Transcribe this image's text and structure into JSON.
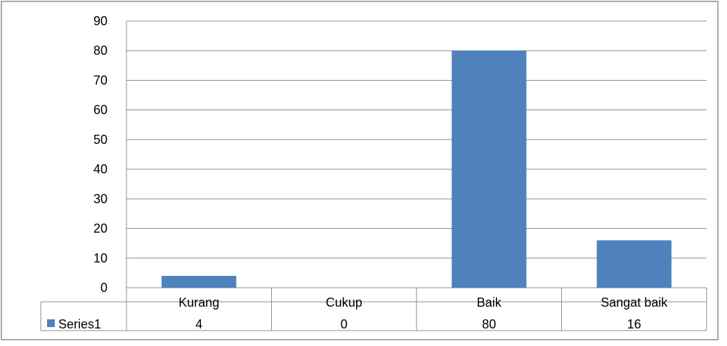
{
  "chart_data": {
    "type": "bar",
    "categories": [
      "Kurang",
      "Cukup",
      "Baik",
      "Sangat baik"
    ],
    "series": [
      {
        "name": "Series1",
        "values": [
          4,
          0,
          80,
          16
        ],
        "color": "#4f81bd"
      }
    ],
    "yticks": [
      "0",
      "10",
      "20",
      "30",
      "40",
      "50",
      "60",
      "70",
      "80",
      "90"
    ],
    "ylim": [
      0,
      90
    ],
    "grid": true,
    "legend": "data-table",
    "data_table": {
      "series_label": "Series1",
      "values": [
        "4",
        "0",
        "80",
        "16"
      ]
    }
  }
}
